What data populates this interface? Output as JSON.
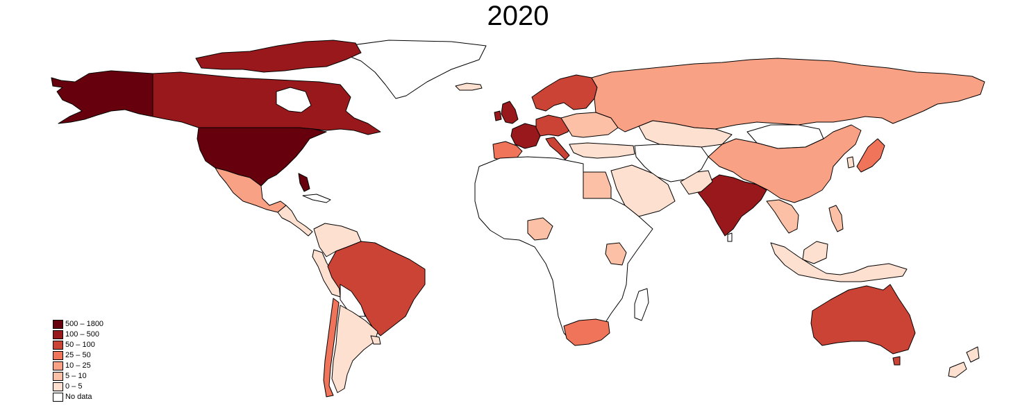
{
  "map": {
    "title": "2020",
    "no_data_color": "#ffffff",
    "border_color": "#000000",
    "legend": [
      {
        "label": "500 – 1800",
        "color": "#67000d"
      },
      {
        "label": "100 – 500",
        "color": "#99181b"
      },
      {
        "label": "50 – 100",
        "color": "#cb4335"
      },
      {
        "label": "25 – 50",
        "color": "#f0745a"
      },
      {
        "label": "10 – 25",
        "color": "#f9a184"
      },
      {
        "label": "5 – 10",
        "color": "#fbc0a6"
      },
      {
        "label": "0 – 5",
        "color": "#fde0d0"
      },
      {
        "label": "No data",
        "color": "#ffffff"
      }
    ]
  }
}
